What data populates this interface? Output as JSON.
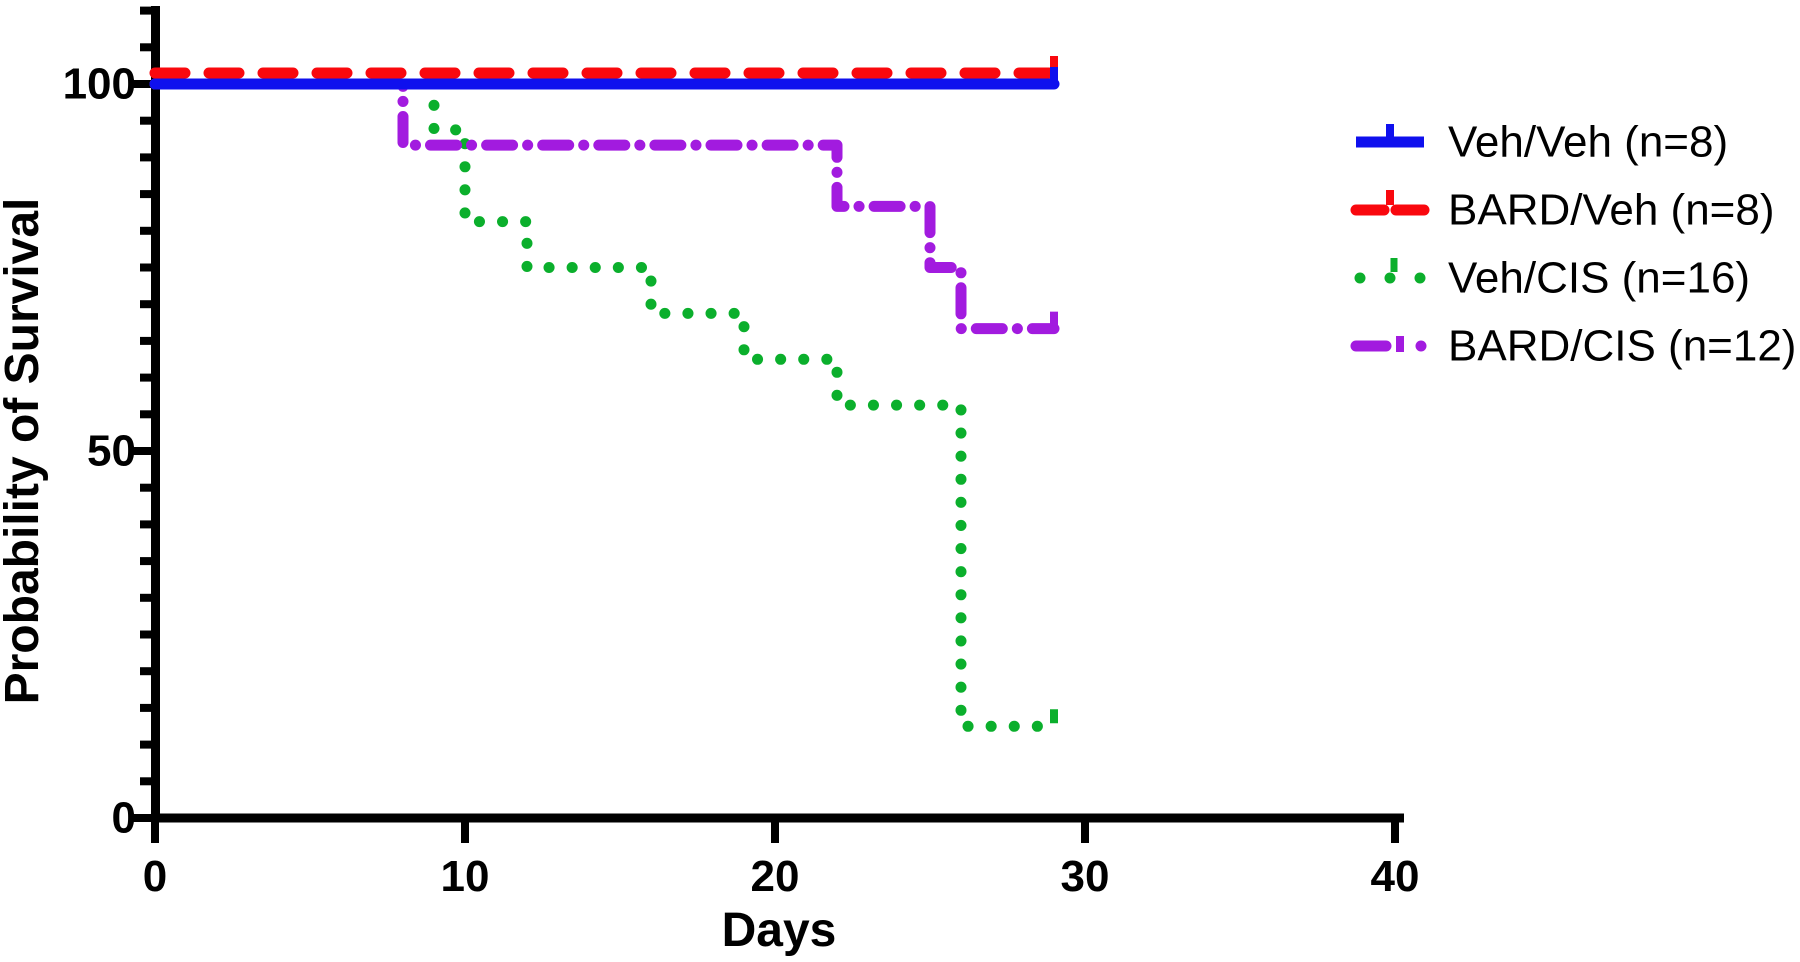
{
  "figure": {
    "background": "#FFFFFF",
    "axis_color": "#000000",
    "text_color": "#000000"
  },
  "chart_data": {
    "type": "line",
    "subtype": "kaplan-meier-step-survival",
    "title": "",
    "xlabel": "Days",
    "ylabel": "Probability of Survival",
    "xlim": [
      0,
      40
    ],
    "ylim": [
      0,
      110
    ],
    "grid": false,
    "legend_position": "right-outside",
    "xticks": [
      0,
      10,
      20,
      30,
      40
    ],
    "xtick_labels": [
      "0",
      "10",
      "20",
      "30",
      "40"
    ],
    "ytick_values": [
      0,
      50,
      100
    ],
    "ytick_labels": [
      "0",
      "50",
      "100"
    ],
    "y_minor_tick_step": 5,
    "series": [
      {
        "name": "Veh/Veh",
        "label": "Veh/Veh (n=8)",
        "n": 8,
        "color": "#0F10EE",
        "style": "solid",
        "points": [
          [
            0,
            100
          ],
          [
            29,
            100
          ]
        ],
        "censored": [
          {
            "day": 29,
            "pct": 100
          }
        ]
      },
      {
        "name": "BARD/Veh",
        "label": "BARD/Veh (n=8)",
        "n": 8,
        "color": "#F9080E",
        "style": "dashed",
        "points": [
          [
            0,
            100
          ],
          [
            29,
            100
          ]
        ],
        "censored": [
          {
            "day": 29,
            "pct": 100
          }
        ]
      },
      {
        "name": "Veh/CIS",
        "label": "Veh/CIS (n=16)",
        "n": 16,
        "color": "#0BAF2C",
        "style": "dotted",
        "points": [
          [
            0,
            100
          ],
          [
            9,
            100
          ],
          [
            9,
            93.75
          ],
          [
            10,
            93.75
          ],
          [
            10,
            81.25
          ],
          [
            12,
            81.25
          ],
          [
            12,
            75
          ],
          [
            16,
            75
          ],
          [
            16,
            68.75
          ],
          [
            19,
            68.75
          ],
          [
            19,
            62.5
          ],
          [
            22,
            62.5
          ],
          [
            22,
            56.25
          ],
          [
            26,
            56.25
          ],
          [
            26,
            12.5
          ],
          [
            29,
            12.5
          ]
        ],
        "censored": [
          {
            "day": 29,
            "pct": 12.5
          }
        ]
      },
      {
        "name": "BARD/CIS",
        "label": "BARD/CIS (n=12)",
        "n": 12,
        "color": "#A21BDF",
        "style": "dashdot",
        "points": [
          [
            0,
            100
          ],
          [
            8,
            100
          ],
          [
            8,
            91.67
          ],
          [
            22,
            91.67
          ],
          [
            22,
            83.33
          ],
          [
            25,
            83.33
          ],
          [
            25,
            75
          ],
          [
            26,
            75
          ],
          [
            26,
            66.67
          ],
          [
            29,
            66.67
          ]
        ],
        "censored": [
          {
            "day": 29,
            "pct": 66.67
          }
        ]
      }
    ]
  }
}
